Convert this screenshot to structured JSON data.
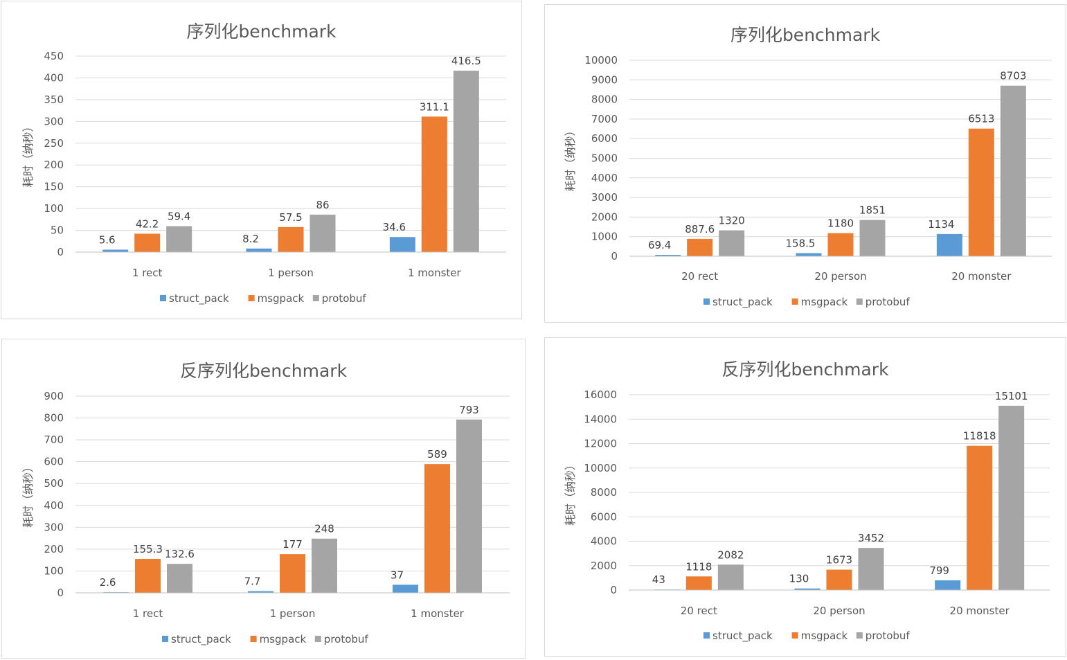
{
  "colors": {
    "struct_pack": "#5b9bd5",
    "msgpack": "#ed7d31",
    "protobuf": "#a5a5a5"
  },
  "chart_data": [
    {
      "type": "bar",
      "title": "序列化benchmark",
      "ylabel": "耗时（纳秒）",
      "categories": [
        "1 rect",
        "1 person",
        "1 monster"
      ],
      "ylim": [
        0,
        450
      ],
      "yticks": [
        0,
        50,
        100,
        150,
        200,
        250,
        300,
        350,
        400,
        450
      ],
      "grid": true,
      "legend": "bottom",
      "series": [
        {
          "name": "struct_pack",
          "values": [
            5.6,
            8.2,
            34.6
          ]
        },
        {
          "name": "msgpack",
          "values": [
            42.2,
            57.5,
            311.1
          ]
        },
        {
          "name": "protobuf",
          "values": [
            59.4,
            86,
            416.5
          ]
        }
      ]
    },
    {
      "type": "bar",
      "title": "序列化benchmark",
      "ylabel": "耗时（纳秒）",
      "categories": [
        "20 rect",
        "20 person",
        "20 monster"
      ],
      "ylim": [
        0,
        10000
      ],
      "yticks": [
        0,
        1000,
        2000,
        3000,
        4000,
        5000,
        6000,
        7000,
        8000,
        9000,
        10000
      ],
      "grid": true,
      "legend": "bottom",
      "series": [
        {
          "name": "struct_pack",
          "values": [
            69.4,
            158.5,
            1134
          ]
        },
        {
          "name": "msgpack",
          "values": [
            887.6,
            1180,
            6513
          ]
        },
        {
          "name": "protobuf",
          "values": [
            1320,
            1851,
            8703
          ]
        }
      ]
    },
    {
      "type": "bar",
      "title": "反序列化benchmark",
      "ylabel": "耗时（纳秒）",
      "categories": [
        "1 rect",
        "1 person",
        "1 monster"
      ],
      "ylim": [
        0,
        900
      ],
      "yticks": [
        0,
        100,
        200,
        300,
        400,
        500,
        600,
        700,
        800,
        900
      ],
      "grid": true,
      "legend": "bottom",
      "series": [
        {
          "name": "struct_pack",
          "values": [
            2.6,
            7.7,
            37
          ]
        },
        {
          "name": "msgpack",
          "values": [
            155.3,
            177,
            589
          ]
        },
        {
          "name": "protobuf",
          "values": [
            132.6,
            248,
            793
          ]
        }
      ]
    },
    {
      "type": "bar",
      "title": "反序列化benchmark",
      "ylabel": "耗时（纳秒）",
      "categories": [
        "20 rect",
        "20 person",
        "20 monster"
      ],
      "ylim": [
        0,
        16000
      ],
      "yticks": [
        0,
        2000,
        4000,
        6000,
        8000,
        10000,
        12000,
        14000,
        16000
      ],
      "grid": true,
      "legend": "bottom",
      "series": [
        {
          "name": "struct_pack",
          "values": [
            43,
            130,
            799
          ]
        },
        {
          "name": "msgpack",
          "values": [
            1118,
            1673,
            11818
          ]
        },
        {
          "name": "protobuf",
          "values": [
            2082,
            3452,
            15101
          ]
        }
      ]
    }
  ]
}
